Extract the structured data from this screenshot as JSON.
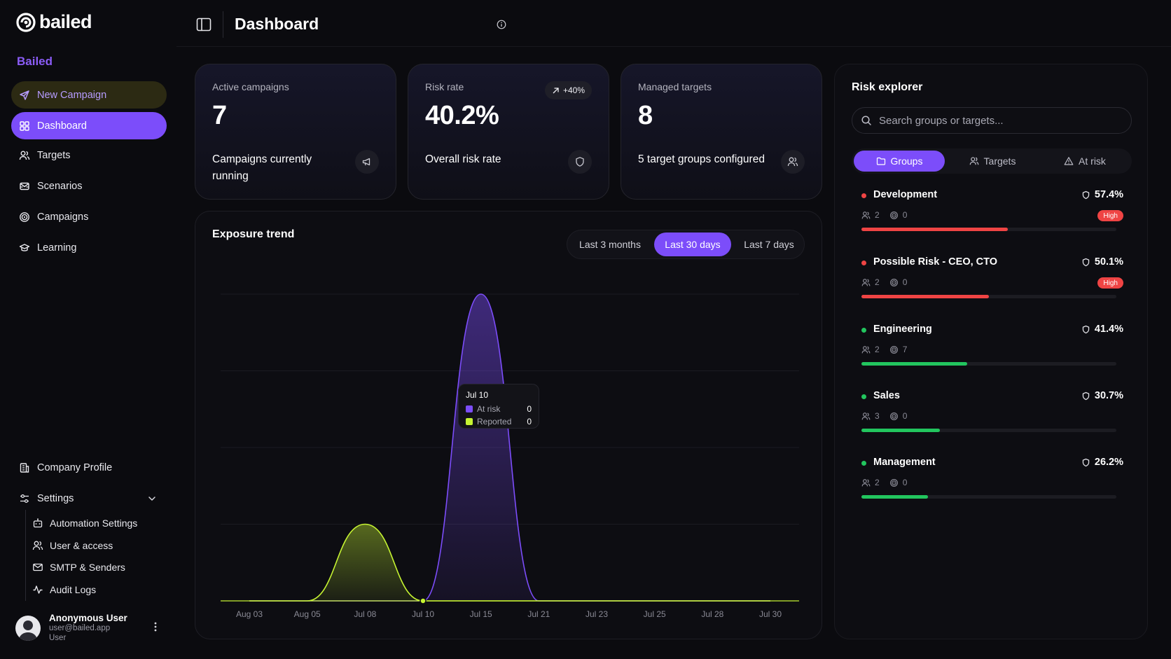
{
  "brand": {
    "name": "bailed",
    "org": "Bailed",
    "accent": "#7c4dfa"
  },
  "sidebar": {
    "new_campaign": "New Campaign",
    "items": [
      {
        "label": "Dashboard",
        "icon": "grid-icon"
      },
      {
        "label": "Targets",
        "icon": "users-icon"
      },
      {
        "label": "Scenarios",
        "icon": "envelope-icon"
      },
      {
        "label": "Campaigns",
        "icon": "target-icon"
      },
      {
        "label": "Learning",
        "icon": "graduation-cap-icon"
      }
    ],
    "company_profile": "Company Profile",
    "settings": "Settings",
    "settings_items": [
      {
        "label": "Automation Settings",
        "icon": "robot-icon"
      },
      {
        "label": "User & access",
        "icon": "users-icon"
      },
      {
        "label": "SMTP & Senders",
        "icon": "mail-icon"
      },
      {
        "label": "Audit Logs",
        "icon": "activity-icon"
      }
    ],
    "user": {
      "name": "Anonymous User",
      "email": "user@bailed.app",
      "role": "User"
    }
  },
  "header": {
    "title": "Dashboard"
  },
  "stats": [
    {
      "label": "Active campaigns",
      "value": "7",
      "desc": "Campaigns currently running",
      "icon": "megaphone-icon"
    },
    {
      "label": "Risk rate",
      "value": "40.2%",
      "desc": "Overall risk rate",
      "icon": "shield-icon",
      "badge": "+40%"
    },
    {
      "label": "Managed targets",
      "value": "8",
      "desc": "5 target groups configured",
      "icon": "users-icon"
    }
  ],
  "exposure": {
    "title": "Exposure trend",
    "ranges": [
      "Last 3 months",
      "Last 30 days",
      "Last 7 days"
    ],
    "active_range": "Last 30 days",
    "tooltip": {
      "date": "Jul 10",
      "at_risk_label": "At risk",
      "at_risk_value": "0",
      "reported_label": "Reported",
      "reported_value": "0"
    }
  },
  "chart_data": {
    "type": "area",
    "title": "Exposure trend",
    "x": [
      "Aug 03",
      "Aug 05",
      "Jul 08",
      "Jul 10",
      "Jul 15",
      "Jul 21",
      "Jul 23",
      "Jul 25",
      "Jul 28",
      "Jul 30"
    ],
    "series": [
      {
        "name": "At risk",
        "color": "#7c4dfa",
        "values": [
          0,
          0,
          0,
          0,
          4,
          0,
          0,
          0,
          0,
          0
        ]
      },
      {
        "name": "Reported",
        "color": "#c6f432",
        "values": [
          0,
          0,
          1,
          0,
          0,
          0,
          0,
          0,
          0,
          0
        ]
      }
    ],
    "ylim": [
      0,
      4
    ],
    "grid": true
  },
  "risk_explorer": {
    "title": "Risk explorer",
    "search_placeholder": "Search groups or targets...",
    "tabs": [
      "Groups",
      "Targets",
      "At risk"
    ],
    "active_tab": "Groups",
    "groups": [
      {
        "name": "Development",
        "pct": "57.4%",
        "fraction": 0.574,
        "members": "2",
        "campaigns": "0",
        "badge": "High",
        "status_color": "#ef4444"
      },
      {
        "name": "Possible Risk - CEO, CTO",
        "pct": "50.1%",
        "fraction": 0.501,
        "members": "2",
        "campaigns": "0",
        "badge": "High",
        "status_color": "#ef4444"
      },
      {
        "name": "Engineering",
        "pct": "41.4%",
        "fraction": 0.414,
        "members": "2",
        "campaigns": "7",
        "badge": "",
        "status_color": "#22c55e"
      },
      {
        "name": "Sales",
        "pct": "30.7%",
        "fraction": 0.307,
        "members": "3",
        "campaigns": "0",
        "badge": "",
        "status_color": "#22c55e"
      },
      {
        "name": "Management",
        "pct": "26.2%",
        "fraction": 0.262,
        "members": "2",
        "campaigns": "0",
        "badge": "",
        "status_color": "#22c55e"
      }
    ]
  }
}
